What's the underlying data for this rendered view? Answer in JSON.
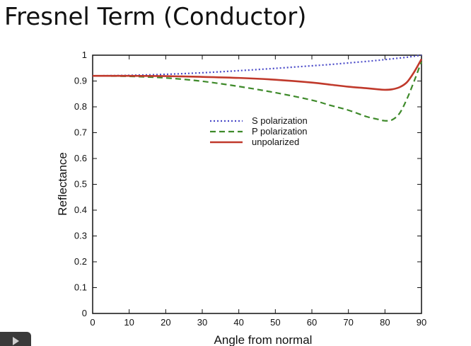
{
  "slide": {
    "title": "Fresnel Term (Conductor)"
  },
  "chart_data": {
    "type": "line",
    "xlabel": "Angle from normal",
    "ylabel": "Reflectance",
    "xlim": [
      0,
      90
    ],
    "ylim": [
      0,
      1
    ],
    "xticks": [
      "0",
      "10",
      "20",
      "30",
      "40",
      "50",
      "60",
      "70",
      "80",
      "90"
    ],
    "yticks": [
      "0",
      "0.1",
      "0.2",
      "0.3",
      "0.4",
      "0.5",
      "0.6",
      "0.7",
      "0.8",
      "0.9",
      "1"
    ],
    "grid": false,
    "legend_position": "center",
    "x": [
      0,
      10,
      20,
      30,
      40,
      50,
      60,
      65,
      70,
      75,
      78,
      80,
      82,
      84,
      86,
      88,
      90
    ],
    "series": [
      {
        "name": "S polarization",
        "color": "#4a4ac8",
        "style": "dotted",
        "values": [
          0.92,
          0.922,
          0.926,
          0.932,
          0.94,
          0.949,
          0.959,
          0.964,
          0.97,
          0.976,
          0.98,
          0.983,
          0.986,
          0.989,
          0.992,
          0.996,
          1.0
        ]
      },
      {
        "name": "P polarization",
        "color": "#3e8a2a",
        "style": "dashed",
        "values": [
          0.92,
          0.918,
          0.912,
          0.899,
          0.879,
          0.855,
          0.826,
          0.806,
          0.787,
          0.762,
          0.752,
          0.746,
          0.75,
          0.775,
          0.83,
          0.9,
          0.975
        ]
      },
      {
        "name": "unpolarized",
        "color": "#c0392b",
        "style": "solid",
        "values": [
          0.92,
          0.92,
          0.919,
          0.916,
          0.912,
          0.905,
          0.894,
          0.886,
          0.878,
          0.872,
          0.868,
          0.866,
          0.868,
          0.876,
          0.895,
          0.935,
          0.985
        ]
      }
    ]
  },
  "controls": {
    "play_icon": "play-icon"
  }
}
